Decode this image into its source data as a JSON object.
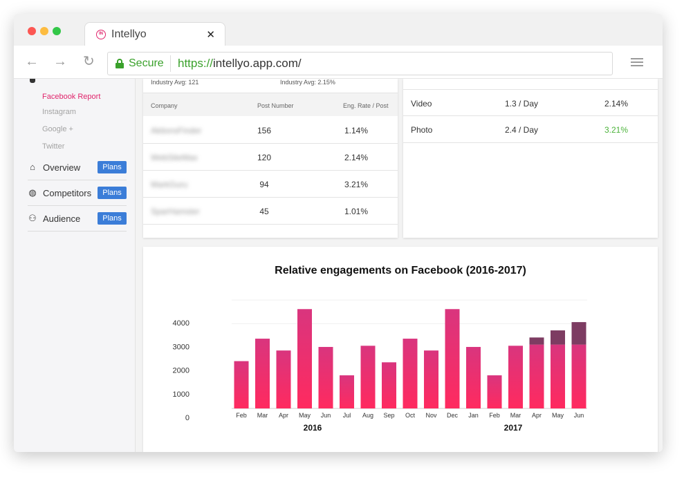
{
  "browser": {
    "tab_title": "Intellyo",
    "tab_close": "✕",
    "secure_label": "Secure",
    "url_scheme": "https://",
    "url_rest": "intellyo.app.com/",
    "back_glyph": "←",
    "forward_glyph": "→",
    "reload_glyph": "↻",
    "favicon_text": "IN"
  },
  "sidebar": {
    "sub_items": [
      {
        "label": "Facebook Report",
        "active": true
      },
      {
        "label": "Instagram",
        "active": false
      },
      {
        "label": "Google +",
        "active": false
      },
      {
        "label": "Twitter",
        "active": false
      }
    ],
    "nav": [
      {
        "label": "Overview",
        "icon": "home-icon",
        "glyph": "⌂",
        "badge": "Plans"
      },
      {
        "label": "Competitors",
        "icon": "globe-icon",
        "glyph": "◍",
        "badge": "Plans"
      },
      {
        "label": "Audience",
        "icon": "people-icon",
        "glyph": "⚇",
        "badge": "Plans"
      }
    ]
  },
  "competitors_table": {
    "industry_left": "Industry Avg: 121",
    "industry_right": "Industry Avg: 2.15%",
    "headers": [
      "Company",
      "Post Number",
      "Eng. Rate / Post"
    ],
    "rows": [
      {
        "company": "AktionsFinder",
        "posts": "156",
        "rate": "1.14%"
      },
      {
        "company": "WebSiteMax",
        "posts": "120",
        "rate": "2.14%"
      },
      {
        "company": "MarkGuru",
        "posts": "94",
        "rate": "3.21%"
      },
      {
        "company": "SparHamster",
        "posts": "45",
        "rate": "1.01%"
      }
    ]
  },
  "post_types_table": {
    "rows": [
      {
        "type": "Video",
        "frequency": "1.3 / Day",
        "rate": "2.14%",
        "highlight": false
      },
      {
        "type": "Photo",
        "frequency": "2.4 / Day",
        "rate": "3.21%",
        "highlight": true
      }
    ],
    "highlight_color": "#4bb33a"
  },
  "chart": {
    "title": "Relative engagements on Facebook (2016-2017)"
  },
  "chart_data": {
    "type": "bar",
    "title": "Relative engagements on Facebook (2016-2017)",
    "categories": [
      "Feb",
      "Mar",
      "Apr",
      "May",
      "Jun",
      "Jul",
      "Aug",
      "Sep",
      "Oct",
      "Nov",
      "Dec",
      "Jan",
      "Feb",
      "Mar",
      "Apr",
      "May",
      "Jun"
    ],
    "year_groups": [
      {
        "label": "2016",
        "first_index": 0,
        "last_index": 10
      },
      {
        "label": "2017",
        "first_index": 11,
        "last_index": 16
      }
    ],
    "series": [
      {
        "values": [
          2000,
          2950,
          2450,
          4200,
          2600,
          1400,
          2650,
          1950,
          2950,
          2450,
          4200,
          2600,
          1400,
          2650,
          2700,
          2700,
          2700
        ],
        "color_top": "#d9357e",
        "color_bottom": "#ff2a5f"
      },
      {
        "values": [
          0,
          0,
          0,
          0,
          0,
          0,
          0,
          0,
          0,
          0,
          0,
          0,
          0,
          0,
          300,
          600,
          950
        ],
        "color": "#7d3c62"
      }
    ],
    "ylim": [
      0,
      4500
    ],
    "yticks": [
      0,
      1000,
      2000,
      3000,
      4000
    ],
    "grid": true
  }
}
